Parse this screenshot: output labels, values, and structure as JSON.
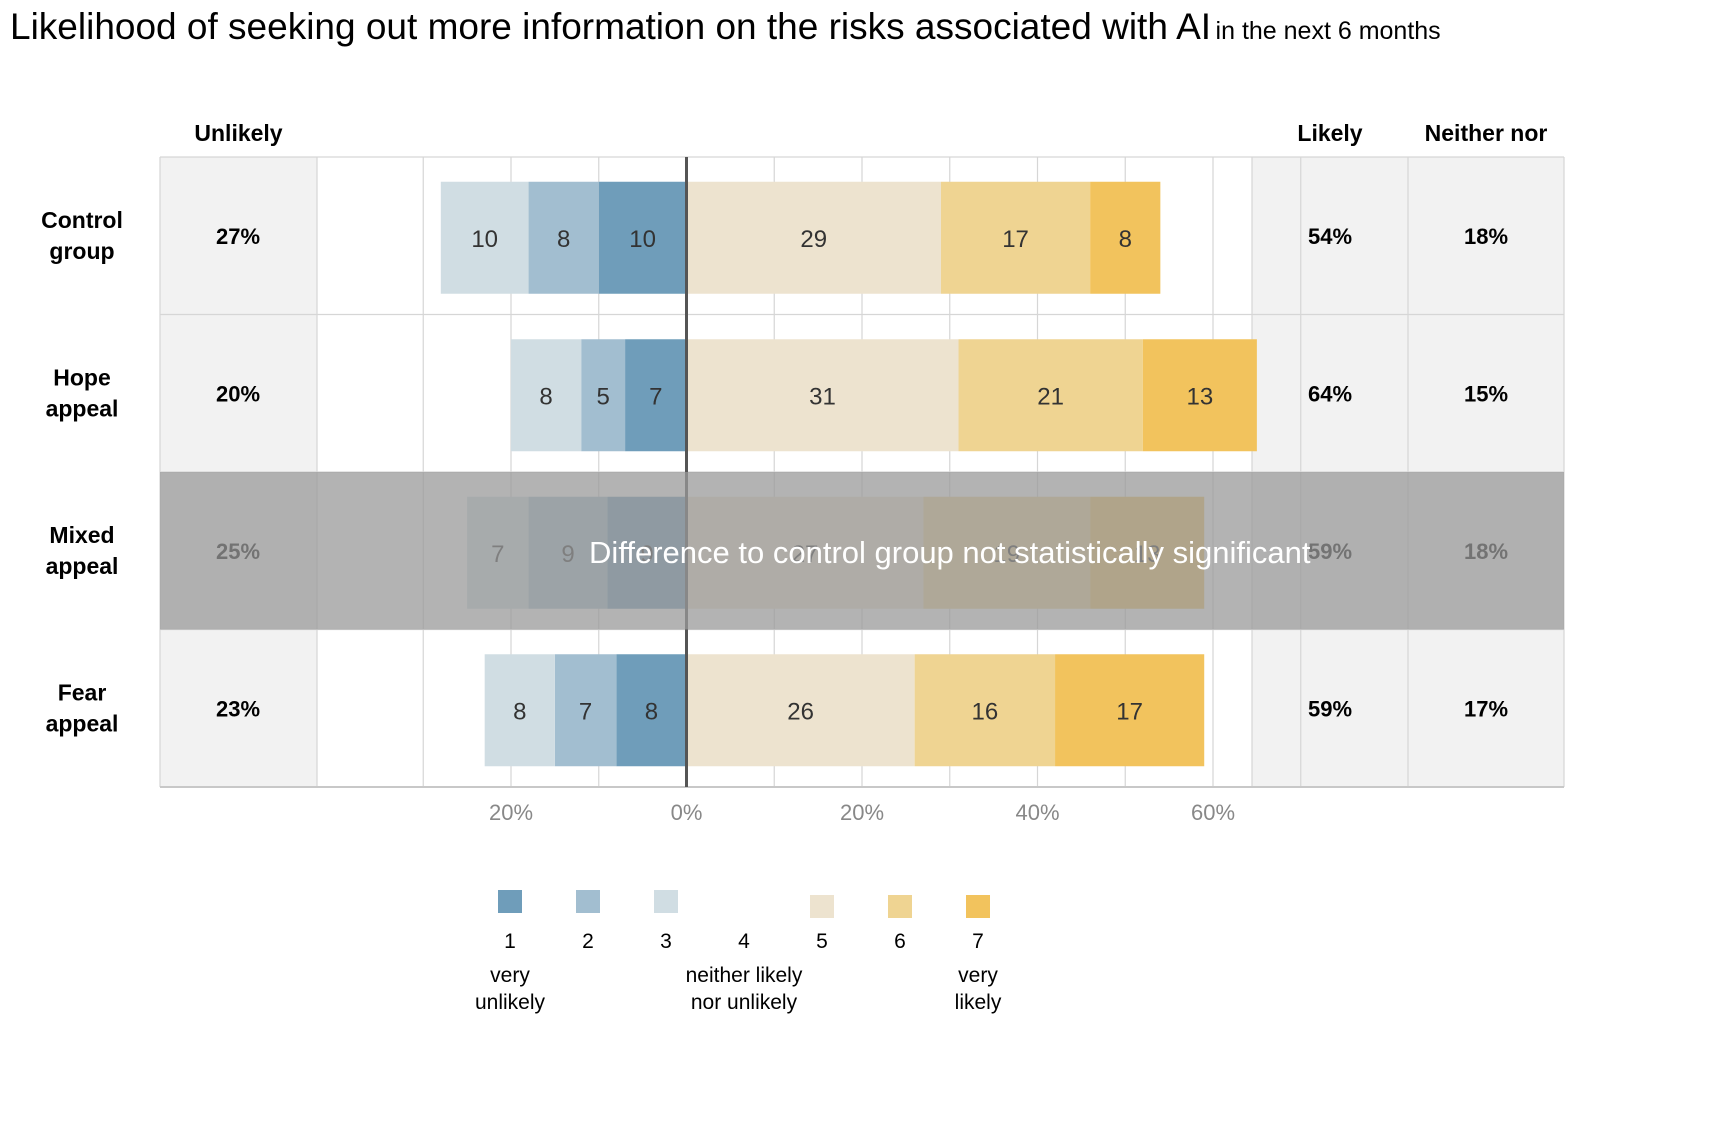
{
  "title": {
    "main": "Likelihood of seeking out more information on the risks associated with AI",
    "sub": "in the next 6 months"
  },
  "headers": {
    "unlikely": "Unlikely",
    "likely": "Likely",
    "neither": "Neither nor"
  },
  "overlay": {
    "text": "Difference to control group not statistically significant",
    "row_index": 2
  },
  "chart_data": {
    "type": "bar",
    "orientation": "horizontal",
    "stacked": "diverging",
    "categories": [
      "Control group",
      "Hope appeal",
      "Mixed appeal",
      "Fear appeal"
    ],
    "category_lines": [
      [
        "Control",
        "group"
      ],
      [
        "Hope",
        "appeal"
      ],
      [
        "Mixed",
        "appeal"
      ],
      [
        "Fear",
        "appeal"
      ]
    ],
    "negative_series": [
      {
        "name": "1",
        "color": "#6f9dba",
        "values": [
          10,
          7,
          9,
          8
        ]
      },
      {
        "name": "2",
        "color": "#a2bed0",
        "values": [
          8,
          5,
          9,
          7
        ]
      },
      {
        "name": "3",
        "color": "#d0dde3",
        "values": [
          10,
          8,
          7,
          8
        ]
      }
    ],
    "positive_series": [
      {
        "name": "5",
        "color": "#ede3cf",
        "values": [
          29,
          31,
          27,
          26
        ]
      },
      {
        "name": "6",
        "color": "#efd492",
        "values": [
          17,
          21,
          19,
          16
        ]
      },
      {
        "name": "7",
        "color": "#f2c35d",
        "values": [
          8,
          13,
          13,
          17
        ]
      }
    ],
    "summary": {
      "unlikely": [
        "27%",
        "20%",
        "25%",
        "23%"
      ],
      "likely": [
        "54%",
        "64%",
        "59%",
        "59%"
      ],
      "neither": [
        "18%",
        "15%",
        "18%",
        "17%"
      ]
    },
    "x_ticks": [
      {
        "value": -20,
        "label": "20%"
      },
      {
        "value": 0,
        "label": "0%"
      },
      {
        "value": 20,
        "label": "20%"
      },
      {
        "value": 40,
        "label": "40%"
      },
      {
        "value": 60,
        "label": "60%"
      }
    ],
    "grid_values": [
      -30,
      -20,
      -10,
      0,
      10,
      20,
      30,
      40,
      50,
      60,
      70
    ],
    "xlim": [
      -60,
      100
    ],
    "grid": true,
    "legend": {
      "position": "bottom",
      "items": [
        {
          "code": "1",
          "color": "#6f9dba",
          "label": [
            "very",
            "unlikely"
          ]
        },
        {
          "code": "2",
          "color": "#a2bed0",
          "label": []
        },
        {
          "code": "3",
          "color": "#d0dde3",
          "label": []
        },
        {
          "code": "4",
          "color": "",
          "label": [
            "neither likely",
            "nor unlikely"
          ]
        },
        {
          "code": "5",
          "color": "#ede3cf",
          "label": []
        },
        {
          "code": "6",
          "color": "#efd492",
          "label": []
        },
        {
          "code": "7",
          "color": "#f2c35d",
          "label": [
            "very",
            "likely"
          ]
        }
      ]
    }
  }
}
